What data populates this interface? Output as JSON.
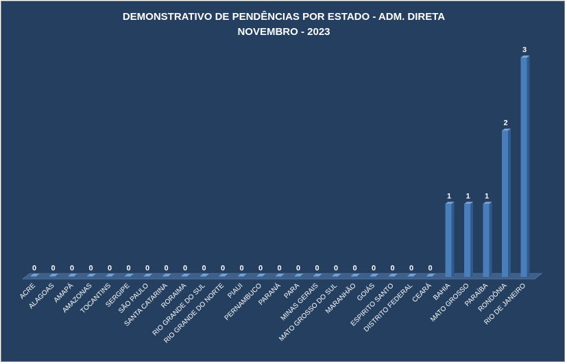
{
  "chart_data": {
    "type": "bar",
    "title": "DEMONSTRATIVO DE PENDÊNCIAS POR ESTADO - ADM. DIRETA",
    "subtitle": "NOVEMBRO - 2023",
    "categories": [
      "ACRE",
      "ALAGOAS",
      "AMAPÁ",
      "AMAZONAS",
      "TOCANTINS",
      "SERGIPE",
      "SÃO PAULO",
      "SANTA CATARINA",
      "RORAIMA",
      "RIO GRANDE DO SUL",
      "RIO GRANDE DO NORTE",
      "PIAUI",
      "PERNAMBUCO",
      "PARANÁ",
      "PARA",
      "MINAS GERAIS",
      "MATO GROSSO DO SUL",
      "MARANHÃO",
      "GOIÁS",
      "ESPIRITO SANTO",
      "DISTRITO FEDERAL",
      "CEARÁ",
      "BAHIA",
      "MATO GROSSO",
      "PARAÍBA",
      "RONDÔNIA",
      "RIO DE JANEIRO"
    ],
    "values": [
      0,
      0,
      0,
      0,
      0,
      0,
      0,
      0,
      0,
      0,
      0,
      0,
      0,
      0,
      0,
      0,
      0,
      0,
      0,
      0,
      0,
      0,
      1,
      1,
      1,
      2,
      3
    ],
    "ylim": [
      0,
      3
    ],
    "grid": false,
    "legend": "none",
    "style": "3d-column",
    "colors": {
      "background": "#243f60",
      "bar_front": "#4a7ebb",
      "bar_side": "#2f5a8e",
      "bar_top": "#7ea6d8",
      "floor": "#3d5f8a",
      "text": "#ffffff"
    }
  }
}
